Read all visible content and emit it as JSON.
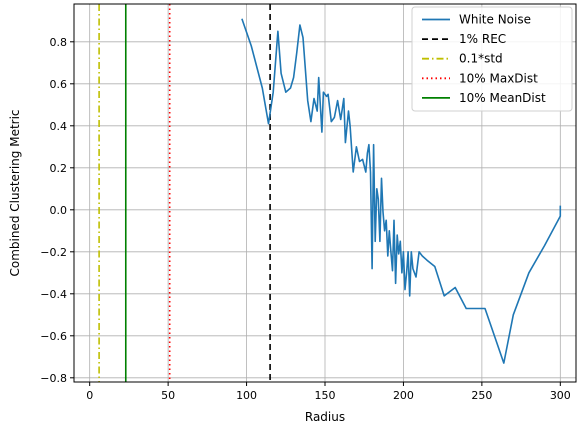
{
  "chart_data": {
    "type": "line",
    "title": "",
    "xlabel": "Radius",
    "ylabel": "Combined Clustering Metric",
    "xlim": [
      -10,
      310
    ],
    "ylim": [
      -0.82,
      0.98
    ],
    "xticks": [
      0,
      50,
      100,
      150,
      200,
      250,
      300
    ],
    "yticks": [
      -0.8,
      -0.6,
      -0.4,
      -0.2,
      0.0,
      0.2,
      0.4,
      0.6,
      0.8
    ],
    "xtick_labels": [
      "0",
      "50",
      "100",
      "150",
      "200",
      "250",
      "300"
    ],
    "ytick_labels": [
      "−0.8",
      "−0.6",
      "−0.4",
      "−0.2",
      "0.0",
      "0.2",
      "0.4",
      "0.6",
      "0.8"
    ],
    "grid": true,
    "legend_position": "top-right",
    "series": [
      {
        "name": "White Noise",
        "color": "#1f77b4",
        "style": "solid",
        "x": [
          97,
          103,
          110,
          114,
          117,
          120,
          122,
          125,
          128,
          130,
          132,
          134,
          136,
          139,
          141,
          143,
          145,
          146,
          148,
          149,
          151,
          152,
          154,
          156,
          158,
          160,
          162,
          163,
          165,
          166,
          168,
          170,
          172,
          174,
          176,
          177,
          178,
          179,
          180,
          181,
          182,
          183,
          184,
          185,
          186,
          187,
          188,
          189,
          190,
          191,
          192,
          193,
          194,
          195,
          196,
          197,
          198,
          199,
          200,
          201,
          202,
          203,
          204,
          205,
          206,
          208,
          210,
          212,
          215,
          220,
          226,
          233,
          240,
          245,
          252,
          258,
          264,
          270,
          280,
          290,
          300,
          300
        ],
        "y": [
          0.91,
          0.78,
          0.58,
          0.41,
          0.56,
          0.85,
          0.65,
          0.56,
          0.58,
          0.63,
          0.75,
          0.88,
          0.82,
          0.52,
          0.42,
          0.53,
          0.47,
          0.63,
          0.37,
          0.56,
          0.54,
          0.55,
          0.42,
          0.44,
          0.52,
          0.43,
          0.53,
          0.32,
          0.47,
          0.4,
          0.18,
          0.3,
          0.23,
          0.24,
          0.18,
          0.27,
          0.31,
          0.18,
          -0.28,
          0.31,
          -0.15,
          0.1,
          0.05,
          -0.15,
          0.15,
          -0.01,
          -0.1,
          -0.05,
          -0.22,
          -0.1,
          -0.2,
          -0.29,
          -0.05,
          -0.35,
          -0.12,
          -0.21,
          -0.15,
          -0.3,
          -0.2,
          -0.38,
          -0.3,
          -0.2,
          -0.41,
          -0.2,
          -0.28,
          -0.32,
          -0.2,
          -0.22,
          -0.24,
          -0.27,
          -0.41,
          -0.37,
          -0.47,
          -0.47,
          -0.47,
          -0.6,
          -0.73,
          -0.5,
          -0.3,
          -0.17,
          -0.03,
          0.02
        ]
      }
    ],
    "vlines": [
      {
        "name": "1% REC",
        "x": 115,
        "color": "#000000",
        "style": "dashed"
      },
      {
        "name": "0.1*std",
        "x": 6,
        "color": "#bfbf00",
        "style": "dashdot"
      },
      {
        "name": "10% MaxDist",
        "x": 51,
        "color": "#ff0000",
        "style": "dotted"
      },
      {
        "name": "10% MeanDist",
        "x": 23,
        "color": "#008000",
        "style": "solid"
      }
    ]
  }
}
